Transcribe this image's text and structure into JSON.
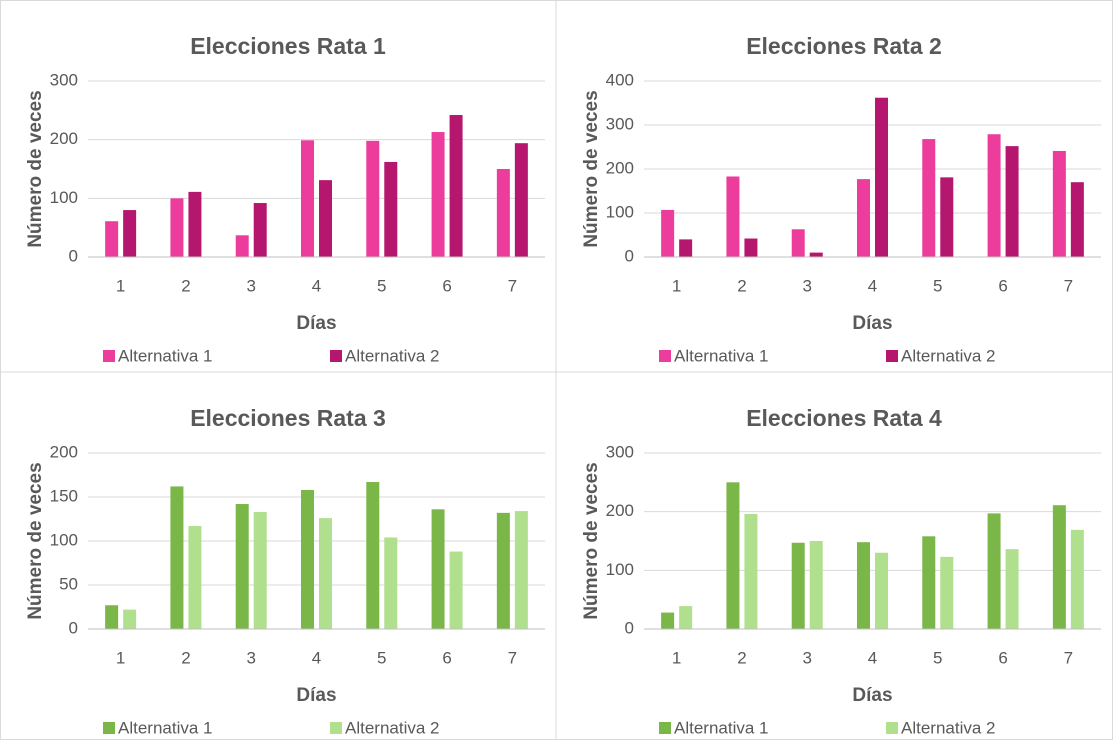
{
  "chart_data": [
    {
      "type": "bar",
      "title": "Elecciones Rata 1",
      "x_label": "Días",
      "y_label": "Número de veces",
      "categories": [
        "1",
        "2",
        "3",
        "4",
        "5",
        "6",
        "7"
      ],
      "series": [
        {
          "name": "Alternativa 1",
          "color": "#ec3d9c",
          "values": [
            61,
            100,
            37,
            199,
            198,
            213,
            150
          ]
        },
        {
          "name": "Alternativa 2",
          "color": "#b5176e",
          "values": [
            80,
            111,
            92,
            131,
            162,
            242,
            194
          ]
        }
      ],
      "ylim": [
        0,
        300
      ],
      "yticks": [
        0,
        100,
        200,
        300
      ],
      "grid": true
    },
    {
      "type": "bar",
      "title": "Elecciones Rata 2",
      "x_label": "Días",
      "y_label": "Número de veces",
      "categories": [
        "1",
        "2",
        "3",
        "4",
        "5",
        "6",
        "7"
      ],
      "series": [
        {
          "name": "Alternativa 1",
          "color": "#ec3d9c",
          "values": [
            107,
            183,
            63,
            177,
            268,
            279,
            241
          ]
        },
        {
          "name": "Alternativa 2",
          "color": "#b5176e",
          "values": [
            40,
            42,
            10,
            362,
            181,
            252,
            170
          ]
        }
      ],
      "ylim": [
        0,
        400
      ],
      "yticks": [
        0,
        100,
        200,
        300,
        400
      ],
      "grid": true
    },
    {
      "type": "bar",
      "title": "Elecciones Rata 3",
      "x_label": "Días",
      "y_label": "Número de veces",
      "categories": [
        "1",
        "2",
        "3",
        "4",
        "5",
        "6",
        "7"
      ],
      "series": [
        {
          "name": "Alternativa 1",
          "color": "#7ab648",
          "values": [
            27,
            162,
            142,
            158,
            167,
            136,
            132
          ]
        },
        {
          "name": "Alternativa 2",
          "color": "#b0df8e",
          "values": [
            22,
            117,
            133,
            126,
            104,
            88,
            134
          ]
        }
      ],
      "ylim": [
        0,
        200
      ],
      "yticks": [
        0,
        50,
        100,
        150,
        200
      ],
      "grid": true
    },
    {
      "type": "bar",
      "title": "Elecciones Rata 4",
      "x_label": "Días",
      "y_label": "Número de veces",
      "categories": [
        "1",
        "2",
        "3",
        "4",
        "5",
        "6",
        "7"
      ],
      "series": [
        {
          "name": "Alternativa 1",
          "color": "#7ab648",
          "values": [
            28,
            250,
            147,
            148,
            158,
            197,
            211
          ]
        },
        {
          "name": "Alternativa 2",
          "color": "#b0df8e",
          "values": [
            39,
            196,
            150,
            130,
            123,
            136,
            169
          ]
        }
      ],
      "ylim": [
        0,
        300
      ],
      "yticks": [
        0,
        100,
        200,
        300
      ],
      "grid": true
    }
  ]
}
